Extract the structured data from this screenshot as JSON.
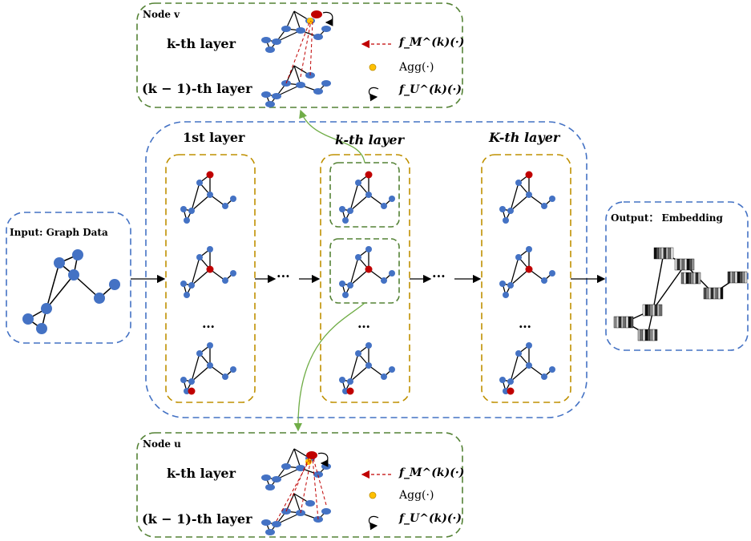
{
  "input": {
    "title": "Input: Graph Data"
  },
  "output": {
    "title": "Output： Embedding"
  },
  "layers": {
    "first": "1st layer",
    "kth": "k-th layer",
    "last": "K-th layer"
  },
  "ellipsis": "…",
  "arrow_ellipsis": "···",
  "top_panel": {
    "node_label": "Node v",
    "k_layer": "k-th layer",
    "k_minus_1_layer": "(k − 1)-th layer"
  },
  "bottom_panel": {
    "node_label": "Node u",
    "k_layer": "k-th layer",
    "k_minus_1_layer": "(k − 1)-th layer"
  },
  "legend": {
    "message": "f_M^(k)(·)",
    "aggregate": "Agg(·)",
    "update": "f_U^(k)(·)"
  },
  "colors": {
    "blue_border": "#4472c4",
    "gold_border": "#bf9000",
    "green_border": "#548235",
    "node_blue": "#4472c4",
    "node_red": "#c00000",
    "node_yellow": "#ffc000",
    "message_arrow": "#c00000",
    "connector_green": "#70ad47"
  }
}
